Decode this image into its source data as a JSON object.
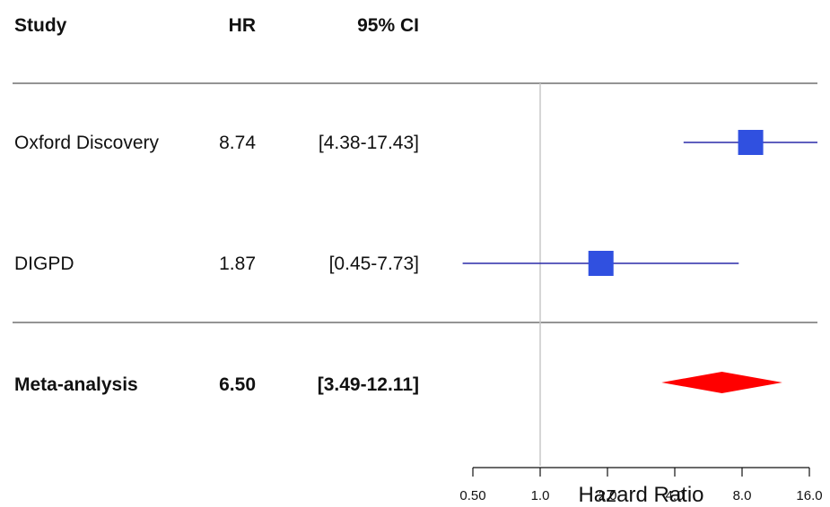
{
  "table": {
    "headers": {
      "study": "Study",
      "hr": "HR",
      "ci": "95% CI"
    },
    "rows": [
      {
        "study": "Oxford Discovery",
        "hr": "8.74",
        "ci": "[4.38-17.43]"
      },
      {
        "study": "DIGPD",
        "hr": "1.87",
        "ci": "[0.45-7.73]"
      }
    ],
    "summary": {
      "study": "Meta-analysis",
      "hr": "6.50",
      "ci": "[3.49-12.11]"
    }
  },
  "chart_data": {
    "type": "forest",
    "xlabel": "Hazard Ratio",
    "x_scale": "log2",
    "xlim": [
      0.5,
      16.0
    ],
    "ticks": [
      0.5,
      1.0,
      2.0,
      4.0,
      8.0,
      16.0
    ],
    "tick_labels": [
      "0.50",
      "1.0",
      "2.0",
      "4.0",
      "8.0",
      "16.0"
    ],
    "reference_line": 1.0,
    "studies": [
      {
        "name": "Oxford Discovery",
        "hr": 8.74,
        "lower": 4.38,
        "upper": 17.43
      },
      {
        "name": "DIGPD",
        "hr": 1.87,
        "lower": 0.45,
        "upper": 7.73
      }
    ],
    "summary": {
      "name": "Meta-analysis",
      "hr": 6.5,
      "lower": 3.49,
      "upper": 12.11
    },
    "colors": {
      "study_marker": "#3050e0",
      "study_line": "#2a2aa8",
      "summary": "#ff0000",
      "reference": "#c8c8c8",
      "rule": "#555555"
    }
  }
}
